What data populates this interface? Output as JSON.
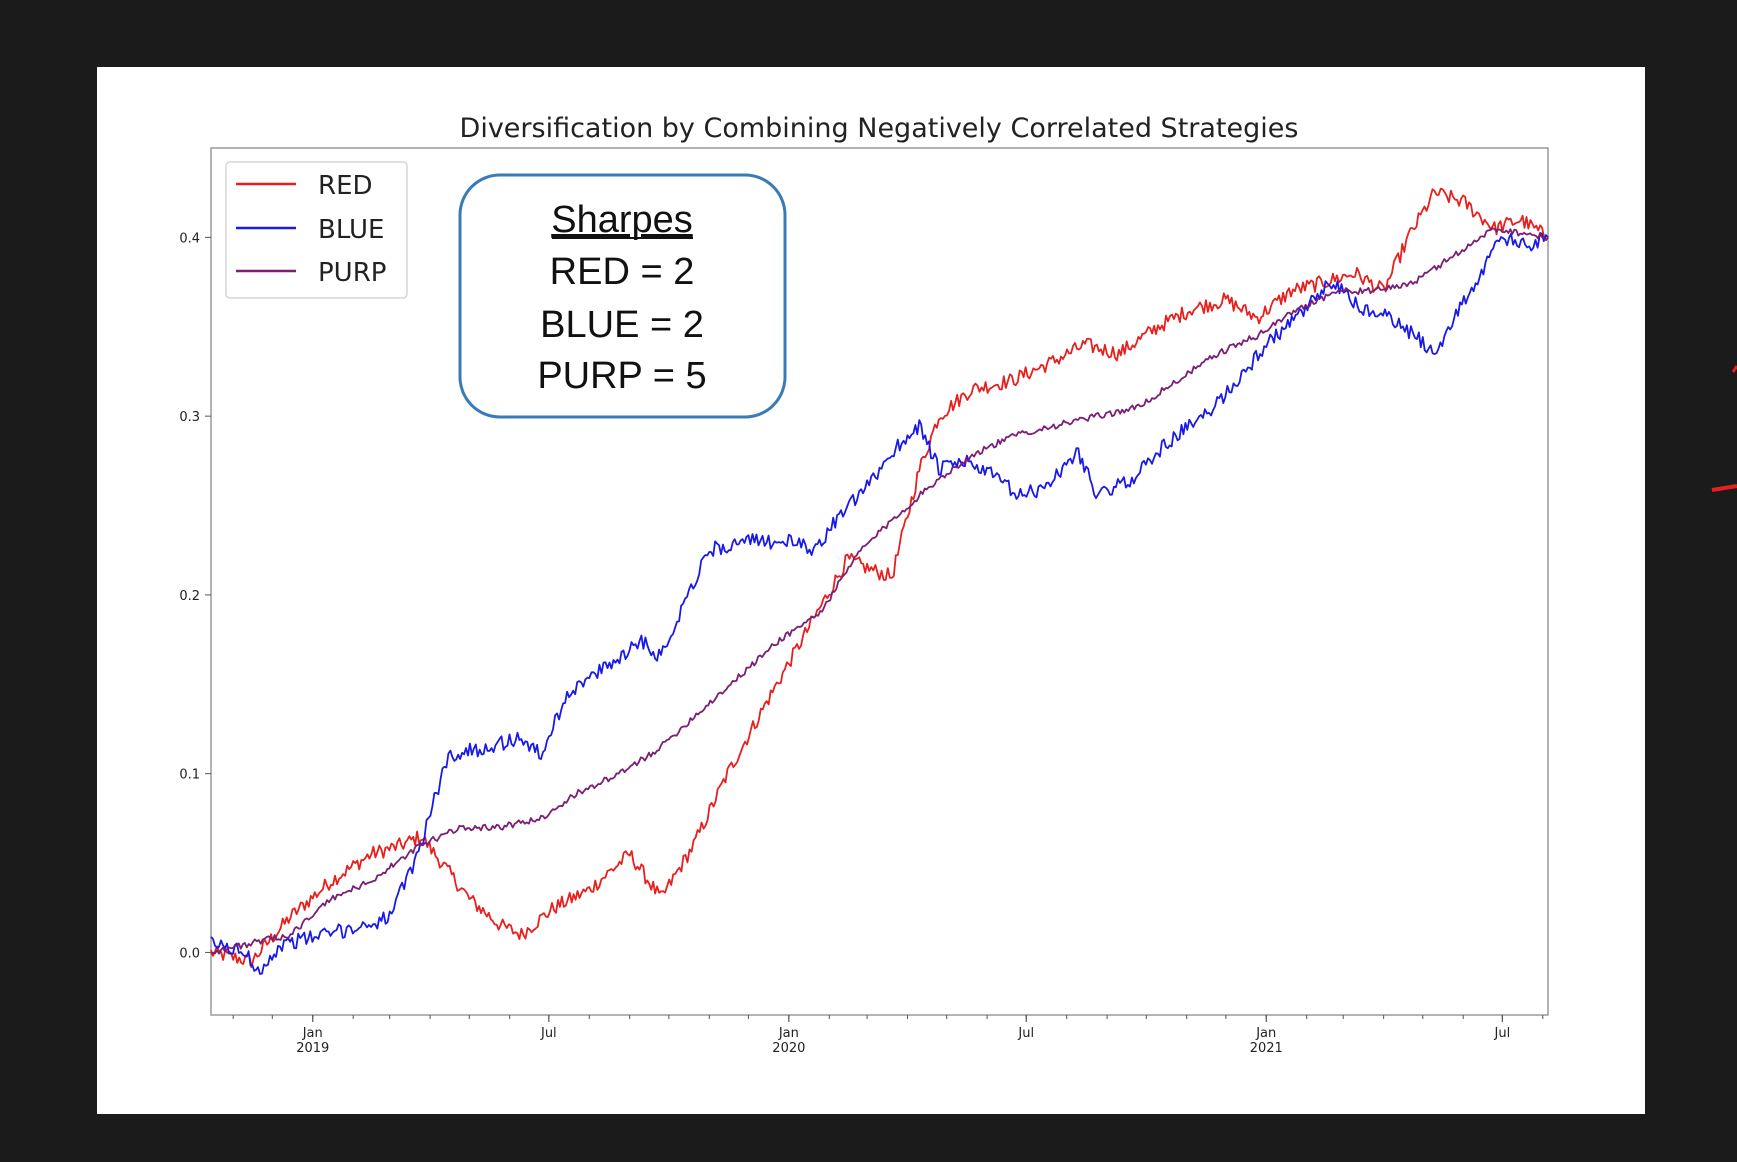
{
  "chart_data": {
    "type": "line",
    "title": "Diversification by Combining Negatively Correlated Strategies",
    "xlabel": "",
    "ylabel": "",
    "ylim": [
      -0.035,
      0.45
    ],
    "x_range": [
      "2018-10-15",
      "2021-08-05"
    ],
    "y_ticks": [
      "0.0",
      "0.1",
      "0.2",
      "0.3",
      "0.4"
    ],
    "x_ticks": [
      {
        "date": "2019-01-01",
        "line1": "Jan",
        "line2": "2019"
      },
      {
        "date": "2019-07-01",
        "line1": "Jul",
        "line2": ""
      },
      {
        "date": "2020-01-01",
        "line1": "Jan",
        "line2": "2020"
      },
      {
        "date": "2020-07-01",
        "line1": "Jul",
        "line2": ""
      },
      {
        "date": "2021-01-01",
        "line1": "Jan",
        "line2": "2021"
      },
      {
        "date": "2021-07-01",
        "line1": "Jul",
        "line2": ""
      }
    ],
    "grid": false,
    "legend_position": "top-left",
    "series": [
      {
        "name": "RED",
        "color": "#e8201d",
        "points": [
          [
            "2018-10-15",
            0.0
          ],
          [
            "2018-11-15",
            -0.005
          ],
          [
            "2018-12-15",
            0.02
          ],
          [
            "2019-01-15",
            0.04
          ],
          [
            "2019-02-15",
            0.055
          ],
          [
            "2019-03-10",
            0.06
          ],
          [
            "2019-03-25",
            0.065
          ],
          [
            "2019-04-10",
            0.05
          ],
          [
            "2019-05-01",
            0.03
          ],
          [
            "2019-05-25",
            0.015
          ],
          [
            "2019-06-10",
            0.01
          ],
          [
            "2019-07-05",
            0.025
          ],
          [
            "2019-08-01",
            0.035
          ],
          [
            "2019-09-01",
            0.055
          ],
          [
            "2019-09-25",
            0.03
          ],
          [
            "2019-10-20",
            0.06
          ],
          [
            "2019-11-15",
            0.1
          ],
          [
            "2019-12-15",
            0.14
          ],
          [
            "2020-01-15",
            0.18
          ],
          [
            "2020-02-15",
            0.22
          ],
          [
            "2020-03-01",
            0.215
          ],
          [
            "2020-03-20",
            0.21
          ],
          [
            "2020-04-10",
            0.27
          ],
          [
            "2020-04-25",
            0.3
          ],
          [
            "2020-05-20",
            0.315
          ],
          [
            "2020-06-20",
            0.32
          ],
          [
            "2020-07-20",
            0.33
          ],
          [
            "2020-08-15",
            0.34
          ],
          [
            "2020-09-10",
            0.335
          ],
          [
            "2020-10-10",
            0.35
          ],
          [
            "2020-11-05",
            0.36
          ],
          [
            "2020-12-01",
            0.365
          ],
          [
            "2020-12-25",
            0.355
          ],
          [
            "2021-01-20",
            0.37
          ],
          [
            "2021-02-15",
            0.375
          ],
          [
            "2021-03-10",
            0.38
          ],
          [
            "2021-04-01",
            0.37
          ],
          [
            "2021-04-20",
            0.4
          ],
          [
            "2021-05-10",
            0.425
          ],
          [
            "2021-06-01",
            0.42
          ],
          [
            "2021-06-25",
            0.405
          ],
          [
            "2021-07-15",
            0.41
          ],
          [
            "2021-08-05",
            0.4
          ]
        ]
      },
      {
        "name": "BLUE",
        "color": "#1a1ae8",
        "points": [
          [
            "2018-10-15",
            0.005
          ],
          [
            "2018-11-10",
            0.0
          ],
          [
            "2018-11-20",
            -0.01
          ],
          [
            "2018-12-10",
            0.005
          ],
          [
            "2019-01-10",
            0.01
          ],
          [
            "2019-02-10",
            0.015
          ],
          [
            "2019-03-01",
            0.02
          ],
          [
            "2019-03-20",
            0.05
          ],
          [
            "2019-04-15",
            0.11
          ],
          [
            "2019-05-15",
            0.115
          ],
          [
            "2019-06-10",
            0.12
          ],
          [
            "2019-06-25",
            0.11
          ],
          [
            "2019-07-15",
            0.145
          ],
          [
            "2019-08-15",
            0.16
          ],
          [
            "2019-09-10",
            0.175
          ],
          [
            "2019-09-25",
            0.165
          ],
          [
            "2019-10-15",
            0.2
          ],
          [
            "2019-11-01",
            0.225
          ],
          [
            "2019-12-01",
            0.23
          ],
          [
            "2020-01-01",
            0.23
          ],
          [
            "2020-01-20",
            0.225
          ],
          [
            "2020-02-10",
            0.245
          ],
          [
            "2020-03-01",
            0.26
          ],
          [
            "2020-03-20",
            0.28
          ],
          [
            "2020-04-10",
            0.295
          ],
          [
            "2020-04-25",
            0.27
          ],
          [
            "2020-05-15",
            0.275
          ],
          [
            "2020-06-10",
            0.265
          ],
          [
            "2020-06-25",
            0.255
          ],
          [
            "2020-07-15",
            0.26
          ],
          [
            "2020-08-10",
            0.28
          ],
          [
            "2020-08-25",
            0.255
          ],
          [
            "2020-09-20",
            0.265
          ],
          [
            "2020-10-10",
            0.28
          ],
          [
            "2020-10-25",
            0.29
          ],
          [
            "2020-11-15",
            0.3
          ],
          [
            "2020-12-10",
            0.32
          ],
          [
            "2021-01-01",
            0.34
          ],
          [
            "2021-01-25",
            0.355
          ],
          [
            "2021-02-20",
            0.375
          ],
          [
            "2021-03-15",
            0.36
          ],
          [
            "2021-04-05",
            0.355
          ],
          [
            "2021-04-25",
            0.345
          ],
          [
            "2021-05-10",
            0.335
          ],
          [
            "2021-05-25",
            0.355
          ],
          [
            "2021-06-15",
            0.38
          ],
          [
            "2021-06-30",
            0.4
          ],
          [
            "2021-07-20",
            0.395
          ],
          [
            "2021-08-05",
            0.4
          ]
        ]
      },
      {
        "name": "PURP",
        "color": "#7b1f74",
        "points": [
          [
            "2018-10-15",
            0.0
          ],
          [
            "2018-12-15",
            0.01
          ],
          [
            "2019-01-15",
            0.03
          ],
          [
            "2019-02-15",
            0.04
          ],
          [
            "2019-03-25",
            0.06
          ],
          [
            "2019-04-25",
            0.07
          ],
          [
            "2019-05-25",
            0.07
          ],
          [
            "2019-06-25",
            0.075
          ],
          [
            "2019-07-25",
            0.09
          ],
          [
            "2019-08-25",
            0.1
          ],
          [
            "2019-09-25",
            0.115
          ],
          [
            "2019-10-25",
            0.135
          ],
          [
            "2019-11-25",
            0.155
          ],
          [
            "2019-12-25",
            0.175
          ],
          [
            "2020-01-25",
            0.19
          ],
          [
            "2020-02-25",
            0.225
          ],
          [
            "2020-03-25",
            0.245
          ],
          [
            "2020-04-25",
            0.265
          ],
          [
            "2020-05-25",
            0.28
          ],
          [
            "2020-06-25",
            0.29
          ],
          [
            "2020-07-25",
            0.295
          ],
          [
            "2020-08-25",
            0.3
          ],
          [
            "2020-09-25",
            0.305
          ],
          [
            "2020-10-25",
            0.32
          ],
          [
            "2020-11-25",
            0.335
          ],
          [
            "2020-12-25",
            0.345
          ],
          [
            "2021-01-25",
            0.36
          ],
          [
            "2021-02-25",
            0.37
          ],
          [
            "2021-03-25",
            0.37
          ],
          [
            "2021-04-25",
            0.375
          ],
          [
            "2021-05-25",
            0.39
          ],
          [
            "2021-06-25",
            0.405
          ],
          [
            "2021-08-05",
            0.4
          ]
        ]
      }
    ]
  },
  "annotation": {
    "heading": "Sharpes",
    "lines": [
      "RED = 2",
      "BLUE = 2",
      "PURP = 5"
    ]
  }
}
